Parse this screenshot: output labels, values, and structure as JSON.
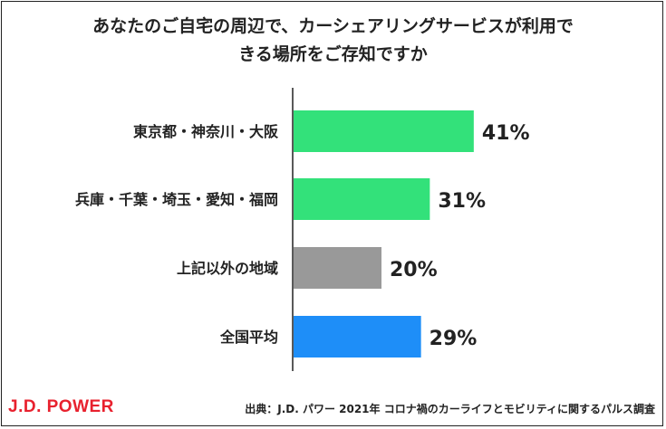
{
  "chart_data": {
    "type": "bar",
    "orientation": "horizontal",
    "title_lines": [
      "あなたのご自宅の周辺で、カーシェアリングサービスが利用で",
      "きる場所をご存知ですか"
    ],
    "categories": [
      "東京都・神奈川・大阪",
      "兵庫・千葉・埼玉・愛知・福岡",
      "上記以外の地域",
      "全国平均"
    ],
    "values": [
      41,
      31,
      20,
      29
    ],
    "value_labels": [
      "41%",
      "31%",
      "20%",
      "29%"
    ],
    "bar_colors": [
      "#33e17a",
      "#33e17a",
      "#999999",
      "#1e8ef8"
    ],
    "xlim": [
      0,
      100
    ],
    "grid": false,
    "legend": "none"
  },
  "footer": {
    "logo": "J.D. POWER",
    "source": "出典：J.D. パワー 2021年 コロナ禍のカーライフとモビリティに関するパルス調査"
  },
  "colors": {
    "logo": "#e8212e",
    "axis": "#222222"
  }
}
